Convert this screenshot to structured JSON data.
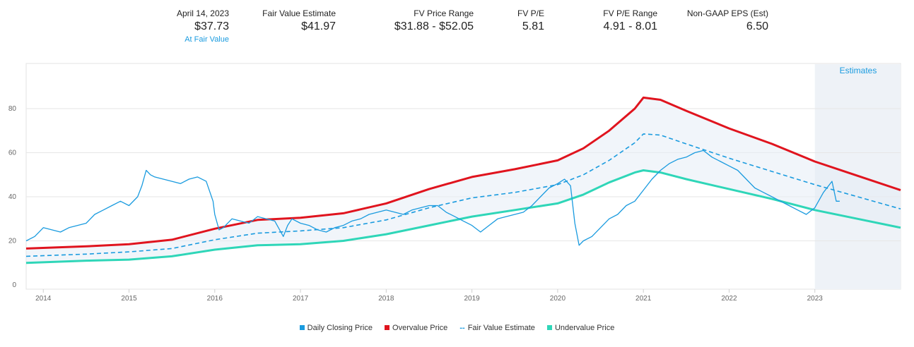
{
  "header": {
    "date_label": "April 14, 2023",
    "price": "$37.73",
    "valuation_status": "At Fair Value",
    "fair_value_label": "Fair Value Estimate",
    "fair_value": "$41.97",
    "fv_range_label": "FV Price Range",
    "fv_range": "$31.88 - $52.05",
    "fv_pe_label": "FV P/E",
    "fv_pe": "5.81",
    "fv_pe_range_label": "FV P/E Range",
    "fv_pe_range": "4.91 - 8.01",
    "eps_label": "Non-GAAP EPS (Est)",
    "eps": "6.50"
  },
  "colors": {
    "price": "#1a9bdf",
    "overvalue": "#e0141e",
    "fair_value": "#1a9bdf",
    "undervalue": "#2fd6b8",
    "band_fill": "#e6edf5",
    "estimates_shade": "#eef2f7",
    "status": "#1a9bdf"
  },
  "chart_data": {
    "type": "line",
    "title": "",
    "xlabel": "",
    "ylabel": "",
    "xlim": [
      2013.8,
      2024.0
    ],
    "ylim": [
      0,
      100
    ],
    "y_ticks": [
      0,
      20,
      40,
      60,
      80
    ],
    "x_ticks": [
      "2014",
      "2015",
      "2016",
      "2017",
      "2018",
      "2019",
      "2020",
      "2021",
      "2022",
      "2023"
    ],
    "estimates_label": "Estimates",
    "estimates_start": 2023.0,
    "grid": true,
    "legend_position": "bottom",
    "series": [
      {
        "name": "Daily Closing Price",
        "style": "solid-thin",
        "color": "#1a9bdf",
        "x": [
          2013.8,
          2013.9,
          2014.0,
          2014.1,
          2014.2,
          2014.3,
          2014.4,
          2014.5,
          2014.6,
          2014.7,
          2014.8,
          2014.9,
          2015.0,
          2015.1,
          2015.15,
          2015.2,
          2015.25,
          2015.3,
          2015.4,
          2015.5,
          2015.6,
          2015.7,
          2015.8,
          2015.9,
          2015.98,
          2016.0,
          2016.05,
          2016.1,
          2016.2,
          2016.3,
          2016.4,
          2016.5,
          2016.6,
          2016.7,
          2016.8,
          2016.85,
          2016.9,
          2017.0,
          2017.1,
          2017.2,
          2017.3,
          2017.4,
          2017.5,
          2017.6,
          2017.7,
          2017.8,
          2017.9,
          2018.0,
          2018.1,
          2018.2,
          2018.3,
          2018.4,
          2018.5,
          2018.6,
          2018.7,
          2018.8,
          2018.9,
          2019.0,
          2019.1,
          2019.2,
          2019.3,
          2019.4,
          2019.5,
          2019.6,
          2019.7,
          2019.8,
          2019.9,
          2020.0,
          2020.08,
          2020.15,
          2020.2,
          2020.25,
          2020.3,
          2020.4,
          2020.5,
          2020.6,
          2020.7,
          2020.8,
          2020.9,
          2021.0,
          2021.1,
          2021.2,
          2021.3,
          2021.4,
          2021.5,
          2021.6,
          2021.7,
          2021.8,
          2021.9,
          2022.0,
          2022.1,
          2022.2,
          2022.3,
          2022.4,
          2022.5,
          2022.6,
          2022.7,
          2022.8,
          2022.9,
          2023.0,
          2023.1,
          2023.2,
          2023.25,
          2023.29
        ],
        "y": [
          20,
          22,
          26,
          25,
          24,
          26,
          27,
          28,
          32,
          34,
          36,
          38,
          36,
          40,
          45,
          52,
          50,
          49,
          48,
          47,
          46,
          48,
          49,
          47,
          38,
          32,
          25,
          26,
          30,
          29,
          28,
          31,
          30,
          29,
          22,
          27,
          30,
          28,
          27,
          25,
          24,
          26,
          27,
          29,
          30,
          32,
          33,
          34,
          33,
          32,
          34,
          35,
          36,
          36,
          33,
          31,
          29,
          27,
          24,
          27,
          30,
          31,
          32,
          33,
          36,
          40,
          44,
          46,
          48,
          45,
          28,
          18,
          20,
          22,
          26,
          30,
          32,
          36,
          38,
          43,
          48,
          52,
          55,
          57,
          58,
          60,
          61,
          58,
          56,
          54,
          52,
          48,
          44,
          42,
          40,
          38,
          36,
          34,
          32,
          35,
          42,
          47,
          38,
          38
        ]
      },
      {
        "name": "Overvalue Price",
        "style": "solid-thick",
        "color": "#e0141e",
        "x": [
          2013.8,
          2014.5,
          2015.0,
          2015.5,
          2016.0,
          2016.5,
          2017.0,
          2017.5,
          2018.0,
          2018.5,
          2019.0,
          2019.5,
          2020.0,
          2020.3,
          2020.6,
          2020.9,
          2021.0,
          2021.2,
          2021.5,
          2022.0,
          2022.5,
          2023.0,
          2023.5,
          2024.0
        ],
        "y": [
          16.5,
          17.5,
          18.5,
          20.5,
          25.5,
          29.5,
          30.5,
          32.5,
          37,
          43.5,
          49,
          52.5,
          56.5,
          62,
          70,
          80,
          85,
          84,
          79,
          71,
          64,
          56,
          49.5,
          43
        ]
      },
      {
        "name": "Fair Value Estimate",
        "style": "dashed",
        "color": "#1a9bdf",
        "x": [
          2013.8,
          2014.5,
          2015.0,
          2015.5,
          2016.0,
          2016.5,
          2017.0,
          2017.5,
          2018.0,
          2018.5,
          2019.0,
          2019.5,
          2020.0,
          2020.3,
          2020.6,
          2020.9,
          2021.0,
          2021.2,
          2021.5,
          2022.0,
          2022.5,
          2023.0,
          2023.5,
          2024.0
        ],
        "y": [
          13,
          14,
          15,
          16.5,
          20.5,
          23.5,
          24.5,
          26,
          29.5,
          35,
          39.5,
          42,
          45.5,
          50,
          56.5,
          64.5,
          68.5,
          68,
          64,
          57.5,
          51.5,
          45.5,
          40,
          34.5
        ]
      },
      {
        "name": "Undervalue Price",
        "style": "solid-thick",
        "color": "#2fd6b8",
        "x": [
          2013.8,
          2014.5,
          2015.0,
          2015.5,
          2016.0,
          2016.5,
          2017.0,
          2017.5,
          2018.0,
          2018.5,
          2019.0,
          2019.5,
          2020.0,
          2020.3,
          2020.6,
          2020.9,
          2021.0,
          2021.2,
          2021.5,
          2022.0,
          2022.5,
          2023.0,
          2023.5,
          2024.0
        ],
        "y": [
          10,
          11,
          11.5,
          13,
          16,
          18,
          18.5,
          20,
          23,
          27,
          31,
          34,
          37,
          41,
          46.5,
          51,
          52,
          51,
          48,
          43.5,
          39,
          34,
          30,
          26
        ]
      }
    ]
  }
}
